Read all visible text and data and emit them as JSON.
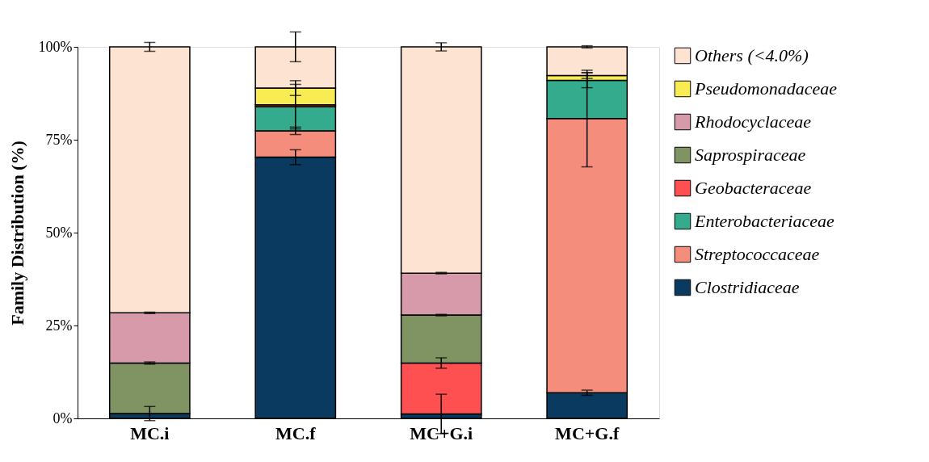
{
  "chart_data": {
    "type": "bar",
    "stacked": true,
    "ylabel": "Family Distribution (%)",
    "categories": [
      "MC.i",
      "MC.f",
      "MC+G.i",
      "MC+G.f"
    ],
    "series": [
      {
        "name": "Clostridiaceae",
        "color": "#0a3a60",
        "values": [
          1.3,
          70.3,
          1.2,
          6.9
        ],
        "errors": [
          1.9,
          2.0,
          5.3,
          0.7
        ]
      },
      {
        "name": "Streptococcaceae",
        "color": "#f48d7c",
        "values": [
          null,
          7.1,
          null,
          73.8
        ],
        "errors": [
          null,
          1.0,
          null,
          13.0
        ]
      },
      {
        "name": "Enterobacteriaceae",
        "color": "#35ab8d",
        "values": [
          null,
          6.5,
          null,
          10.3
        ],
        "errors": [
          null,
          6.0,
          null,
          2.0
        ]
      },
      {
        "name": "Geobacteraceae",
        "color": "#fe5050",
        "values": [
          null,
          0.5,
          13.7,
          null
        ],
        "errors": [
          null,
          null,
          1.4,
          null
        ]
      },
      {
        "name": "Saprospiraceae",
        "color": "#7f9363",
        "values": [
          13.6,
          null,
          12.9,
          null
        ],
        "errors": [
          0.3,
          null,
          0.2,
          null
        ]
      },
      {
        "name": "Rhodocyclaceae",
        "color": "#d69aab",
        "values": [
          13.5,
          null,
          11.3,
          null
        ],
        "errors": [
          0.2,
          null,
          0.2,
          null
        ]
      },
      {
        "name": "Pseudomonadaceae",
        "color": "#f9ec52",
        "values": [
          null,
          4.5,
          null,
          1.3
        ],
        "errors": [
          null,
          2.0,
          null,
          0.8
        ]
      },
      {
        "name": "Others (<4.0%)",
        "color": "#fde4d2",
        "values": [
          71.6,
          11.1,
          60.9,
          7.7
        ],
        "errors": [
          1.2,
          4.0,
          1.1,
          0.3
        ]
      }
    ],
    "ylim": [
      0,
      100
    ],
    "yticks": [
      {
        "value": 0,
        "label": "0%"
      },
      {
        "value": 25,
        "label": "25%"
      },
      {
        "value": 50,
        "label": "50%"
      },
      {
        "value": 75,
        "label": "75%"
      },
      {
        "value": 100,
        "label": "100%"
      }
    ],
    "grid": false,
    "legend": "right"
  }
}
